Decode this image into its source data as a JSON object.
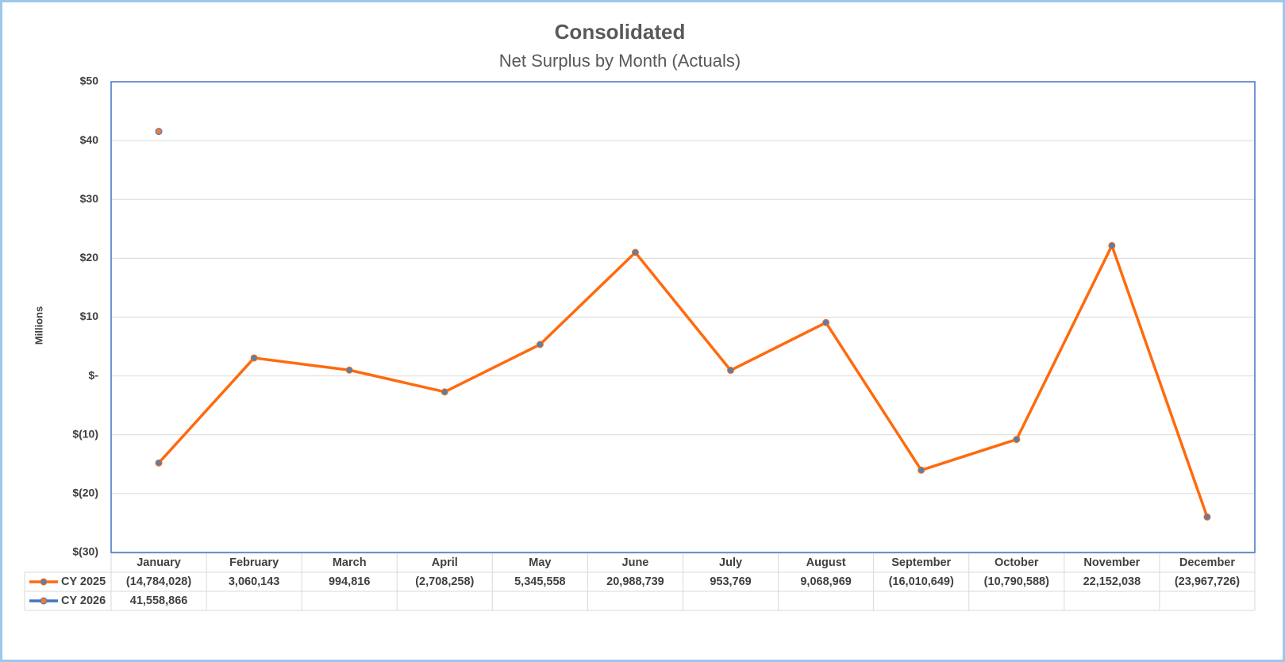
{
  "chart_data": {
    "type": "line",
    "title": "Consolidated",
    "subtitle": "Net Surplus by Month (Actuals)",
    "y_label": "Millions",
    "categories": [
      "January",
      "February",
      "March",
      "April",
      "May",
      "June",
      "July",
      "August",
      "September",
      "October",
      "November",
      "December"
    ],
    "series": [
      {
        "name": "CY 2025",
        "color": "#ff6a0d",
        "marker_color": "#5b7fa8",
        "values": [
          -14.784028,
          3.060143,
          0.994816,
          -2.708258,
          5.345558,
          20.988739,
          0.953769,
          9.068969,
          -16.010649,
          -10.790588,
          22.152038,
          -23.967726
        ],
        "value_labels": [
          "(14,784,028)",
          "3,060,143",
          "994,816",
          "(2,708,258)",
          "5,345,558",
          "20,988,739",
          "953,769",
          "9,068,969",
          "(16,010,649)",
          "(10,790,588)",
          "22,152,038",
          "(23,967,726)"
        ]
      },
      {
        "name": "CY 2026",
        "color": "#4472c4",
        "marker_color": "#ed7d31",
        "values": [
          41.558866,
          null,
          null,
          null,
          null,
          null,
          null,
          null,
          null,
          null,
          null,
          null
        ],
        "value_labels": [
          "41,558,866",
          null,
          null,
          null,
          null,
          null,
          null,
          null,
          null,
          null,
          null,
          null
        ]
      }
    ],
    "ylim": [
      -30,
      50
    ],
    "yticks": [
      {
        "value": -30,
        "label": "$(30)"
      },
      {
        "value": -20,
        "label": "$(20)"
      },
      {
        "value": -10,
        "label": "$(10)"
      },
      {
        "value": 0,
        "label": "$-"
      },
      {
        "value": 10,
        "label": "$10"
      },
      {
        "value": 20,
        "label": "$20"
      },
      {
        "value": 30,
        "label": "$30"
      },
      {
        "value": 40,
        "label": "$40"
      },
      {
        "value": 50,
        "label": "$50"
      }
    ],
    "grid": true,
    "data_table": true
  }
}
